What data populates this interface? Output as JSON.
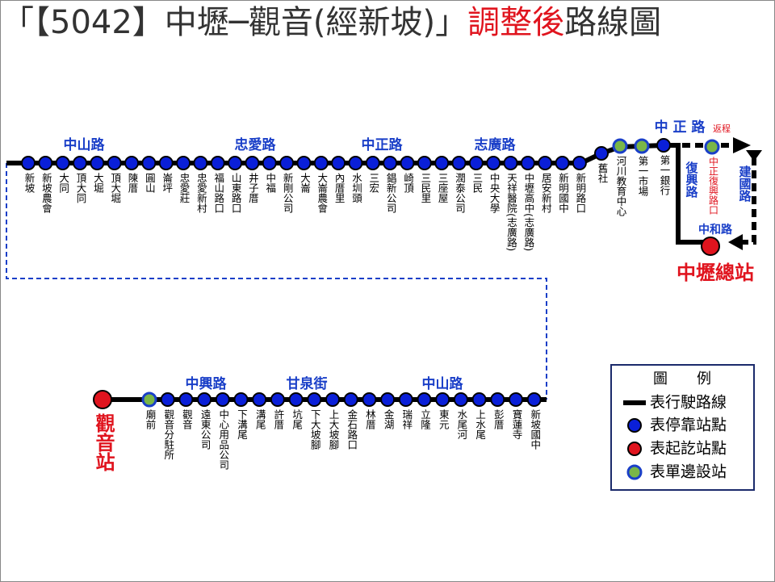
{
  "title": {
    "prefix": "「【5042】中壢─觀音(經新坡)」",
    "highlight": "調整後",
    "suffix": "路線圖"
  },
  "top_roads": [
    "中山路",
    "忠愛路",
    "中正路",
    "志廣路"
  ],
  "top_stops": [
    "新坡",
    "新坡農會",
    "大同",
    "頂大同",
    "大堀",
    "頂大堀",
    "陳厝",
    "圓山",
    "崙坪",
    "忠愛莊",
    "忠愛新村",
    "福山路口",
    "山東路口",
    "井子厝",
    "中福",
    "新剛公司",
    "大崙",
    "大崙農會",
    "內厝里",
    "水圳頭",
    "三宏",
    "錩新公司",
    "崎頂",
    "三民里",
    "三座屋",
    "潤泰公司",
    "三民",
    "中央大學",
    "天祥醫院(志廣路)",
    "中壢高中(志廣路)",
    "居安新村",
    "新明國中",
    "新明路口",
    "舊社",
    "河川教育中心",
    "第一市場",
    "第一銀行"
  ],
  "right": {
    "road_top": "中 正 路",
    "return": "返程",
    "return_stop": "中正復興路口",
    "road_down": "復興路",
    "road_east": "建國路",
    "road_bottom": "中和路",
    "terminal": "中壢總站"
  },
  "bottom_roads": [
    "中興路",
    "甘泉街",
    "中山路"
  ],
  "bottom_stops": [
    "廟前",
    "觀音分駐所",
    "觀音",
    "遠東公司",
    "中心用品公司",
    "下溝尾",
    "溝尾",
    "許厝",
    "坑尾",
    "下大坡腳",
    "上大坡腳",
    "金石路口",
    "林厝",
    "金湖",
    "瑞祥",
    "立隆",
    "東元",
    "水尾河",
    "上水尾",
    "彭厝",
    "寶蓮寺",
    "新坡國中"
  ],
  "terminal_end": "觀音站",
  "legend": {
    "title": "圖　　例",
    "items": [
      "表行駛路線",
      "表停靠站點",
      "表起訖站點",
      "表單邊設站"
    ]
  }
}
